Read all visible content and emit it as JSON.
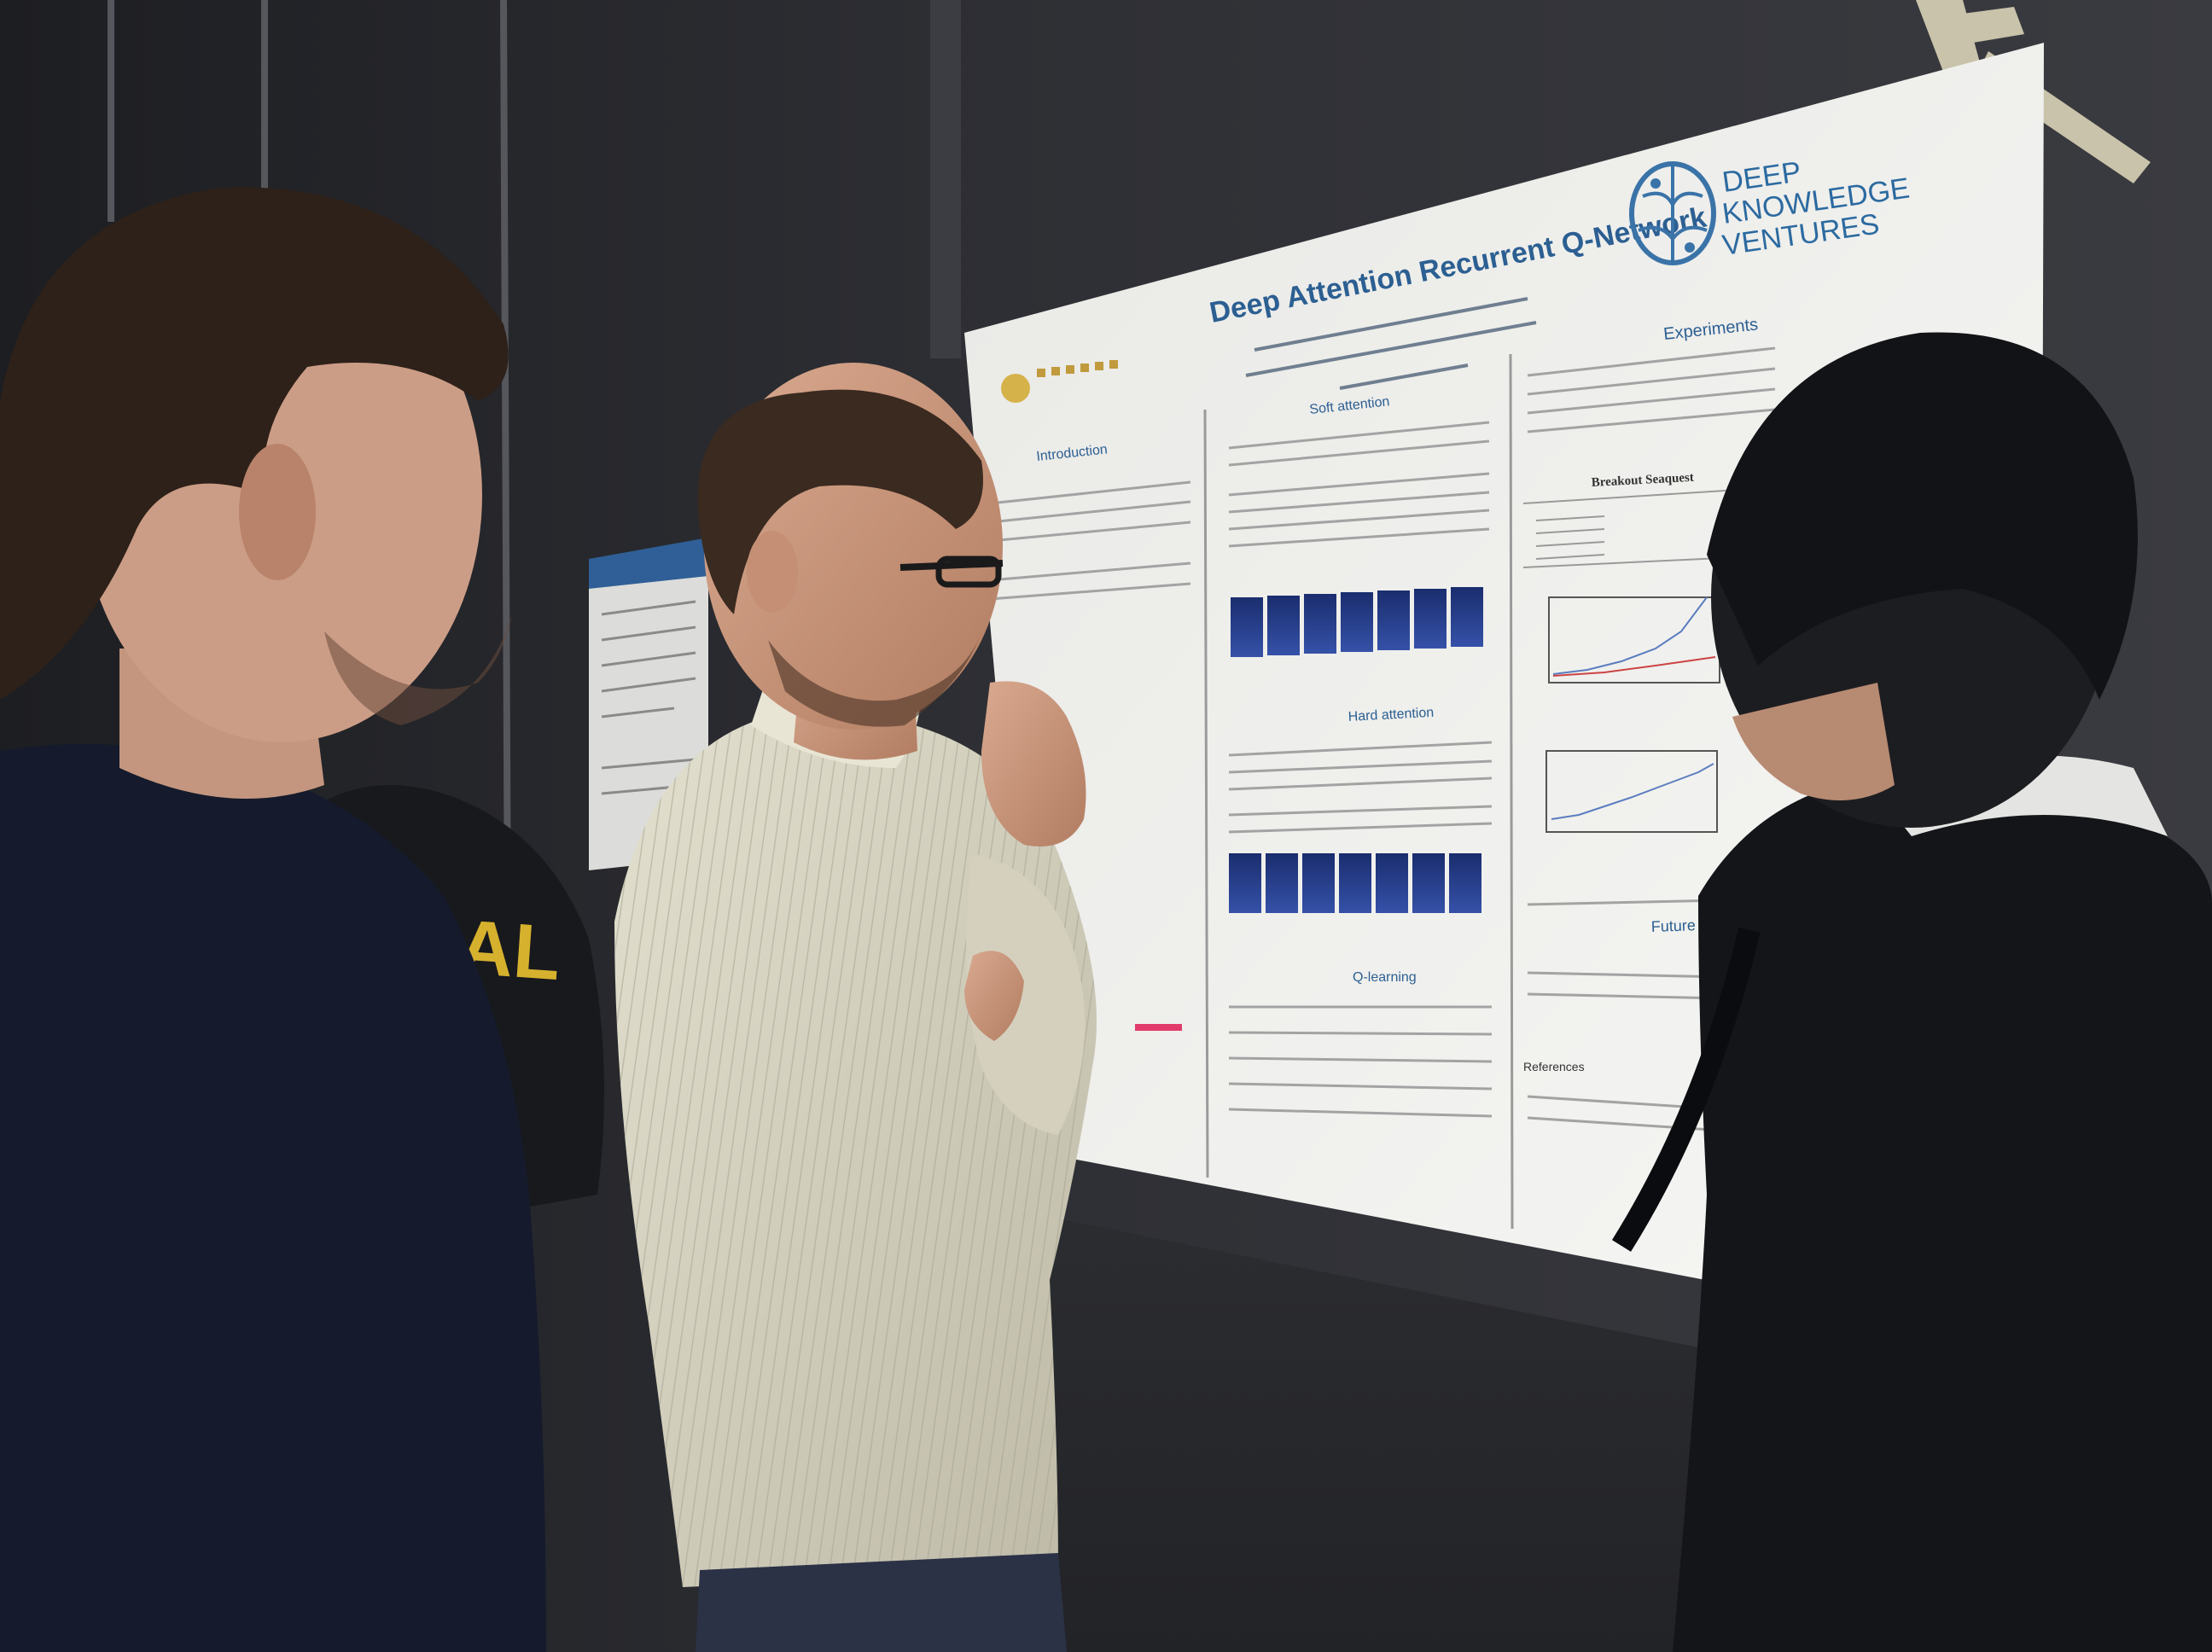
{
  "poster": {
    "title": "Deep Attention Recurrent Q-Network",
    "brand_line1": "DEEP",
    "brand_line2": "KNOWLEDGE",
    "brand_line3": "VENTURES",
    "sections": {
      "introduction": "Introduction",
      "soft_attention": "Soft attention",
      "hard_attention": "Hard attention",
      "q_learning": "Q-learning",
      "experiments": "Experiments",
      "future_work": "Future Wo",
      "references": "References"
    },
    "table_caption": "Breakout Seaquest"
  },
  "shirt_text": "GAL",
  "colors": {
    "wall": "#2a2b2f",
    "poster_paper": "#f1f1ef",
    "accent_blue": "#2b6a9e",
    "sweater": "#d8d5c2"
  }
}
